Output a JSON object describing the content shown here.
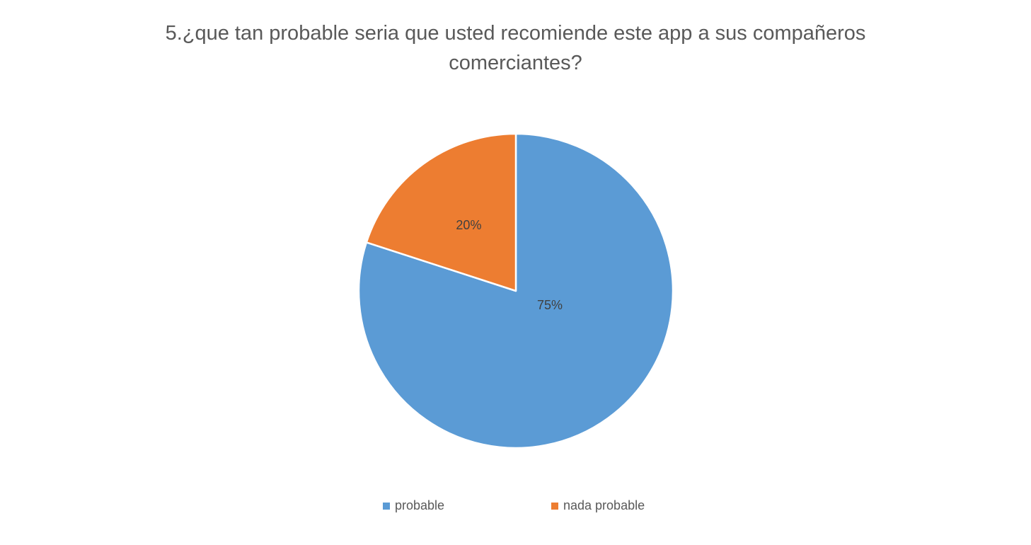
{
  "chart_data": {
    "type": "pie",
    "title_lines": [
      "5.¿que tan probable seria que usted recomiende este app a sus compañeros",
      "comerciantes?"
    ],
    "slices": [
      {
        "label": "probable",
        "value": 75,
        "data_label": "75%",
        "color": "#5B9BD5"
      },
      {
        "label": "nada probable",
        "value": 20,
        "data_label": "20%",
        "color": "#ED7D31"
      }
    ],
    "start_angle_deg": 0,
    "direction": "clockwise",
    "legend_position": "bottom",
    "slice_border_color": "#FFFFFF"
  }
}
